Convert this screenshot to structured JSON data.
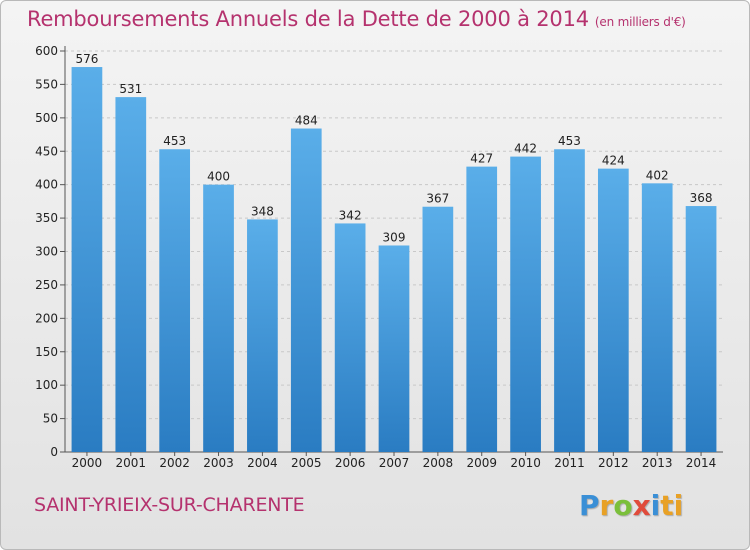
{
  "header": {
    "title": "Remboursements Annuels de la Dette de 2000 à 2014",
    "unit": "(en milliers d'€)"
  },
  "footer": {
    "city": "SAINT-YRIEIX-SUR-CHARENTE",
    "logo_letters": [
      "P",
      "r",
      "o",
      "x",
      "i",
      "ti"
    ]
  },
  "colors": {
    "title": "#b5326e",
    "bar_top": "#5aaee9",
    "bar_bottom": "#2a7cc2"
  },
  "chart_data": {
    "type": "bar",
    "title": "Remboursements Annuels de la Dette de 2000 à 2014",
    "xlabel": "",
    "ylabel": "",
    "categories": [
      "2000",
      "2001",
      "2002",
      "2003",
      "2004",
      "2005",
      "2006",
      "2007",
      "2008",
      "2009",
      "2010",
      "2011",
      "2012",
      "2013",
      "2014"
    ],
    "values": [
      576,
      531,
      453,
      400,
      348,
      484,
      342,
      309,
      367,
      427,
      442,
      453,
      424,
      402,
      368
    ],
    "ylim": [
      0,
      600
    ],
    "yticks": [
      0,
      50,
      100,
      150,
      200,
      250,
      300,
      350,
      400,
      450,
      500,
      550,
      600
    ],
    "grid": true,
    "data_labels": true
  }
}
